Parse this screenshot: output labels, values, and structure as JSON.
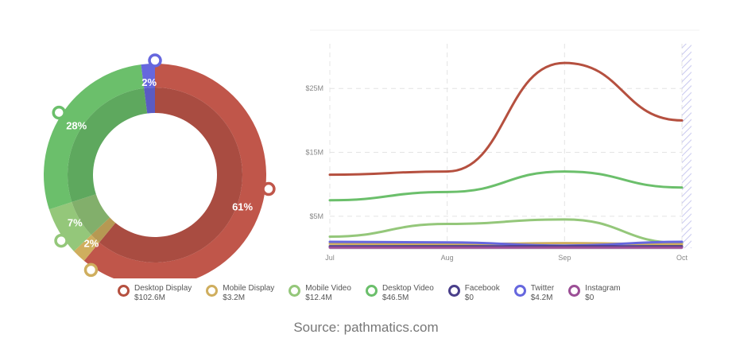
{
  "chart_data": [
    {
      "type": "pie",
      "style": "donut",
      "slices": [
        {
          "label": "Desktop Display",
          "percent": 61,
          "color": "#c0564a"
        },
        {
          "label": "Mobile Display",
          "percent": 2,
          "color": "#cfae5e"
        },
        {
          "label": "Mobile Video",
          "percent": 7,
          "color": "#94c77a"
        },
        {
          "label": "Desktop Video",
          "percent": 28,
          "color": "#6bbf6b"
        },
        {
          "label": "Twitter",
          "percent": 2,
          "color": "#6667de"
        }
      ]
    },
    {
      "type": "line",
      "categories": [
        "Jul",
        "Aug",
        "Sep",
        "Oct"
      ],
      "y_ticks": [
        "$5M",
        "$15M",
        "$25M"
      ],
      "ylim": [
        0,
        32
      ],
      "grid": true,
      "series": [
        {
          "name": "Desktop Display",
          "color": "#b5503f",
          "values": [
            11.5,
            12,
            29,
            20
          ]
        },
        {
          "name": "Desktop Video",
          "color": "#6bbf6b",
          "values": [
            7.5,
            8.8,
            12,
            9.5
          ]
        },
        {
          "name": "Mobile Video",
          "color": "#94c77a",
          "values": [
            1.8,
            3.8,
            4.5,
            0.8
          ]
        },
        {
          "name": "Mobile Display",
          "color": "#cfae5e",
          "values": [
            0.7,
            0.6,
            0.8,
            0.6
          ]
        },
        {
          "name": "Twitter",
          "color": "#6667de",
          "values": [
            1.0,
            0.9,
            0.4,
            1.0
          ]
        },
        {
          "name": "Facebook",
          "color": "#4a3f8a",
          "values": [
            0.3,
            0.3,
            0.3,
            0.3
          ]
        },
        {
          "name": "Instagram",
          "color": "#9b4f96",
          "values": [
            0.1,
            0.1,
            0.1,
            0.1
          ]
        }
      ]
    }
  ],
  "legend": [
    {
      "name": "Desktop Display",
      "value": "$102.6M",
      "color": "#b5503f"
    },
    {
      "name": "Mobile Display",
      "value": "$3.2M",
      "color": "#cfae5e"
    },
    {
      "name": "Mobile Video",
      "value": "$12.4M",
      "color": "#94c77a"
    },
    {
      "name": "Desktop Video",
      "value": "$46.5M",
      "color": "#6bbf6b"
    },
    {
      "name": "Facebook",
      "value": "$0",
      "color": "#4a3f8a"
    },
    {
      "name": "Twitter",
      "value": "$4.2M",
      "color": "#6667de"
    },
    {
      "name": "Instagram",
      "value": "$0",
      "color": "#9b4f96"
    }
  ],
  "source": "Source: pathmatics.com"
}
